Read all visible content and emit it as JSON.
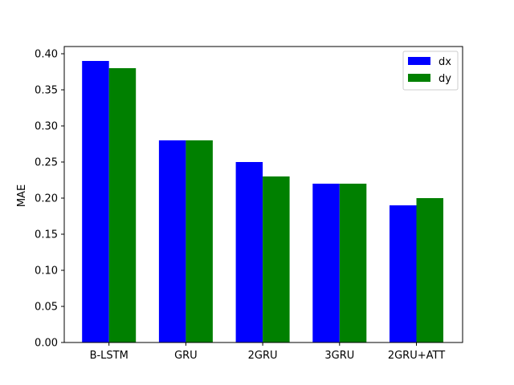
{
  "chart_data": {
    "type": "bar",
    "categories": [
      "B-LSTM",
      "GRU",
      "2GRU",
      "3GRU",
      "2GRU+ATT"
    ],
    "series": [
      {
        "name": "dx",
        "values": [
          0.39,
          0.28,
          0.25,
          0.22,
          0.19
        ],
        "color": "#0000ff"
      },
      {
        "name": "dy",
        "values": [
          0.38,
          0.28,
          0.23,
          0.22,
          0.2
        ],
        "color": "#008000"
      }
    ],
    "title": "",
    "xlabel": "",
    "ylabel": "MAE",
    "ylim": [
      0,
      0.4
    ],
    "yticks": [
      "0.00",
      "0.05",
      "0.10",
      "0.15",
      "0.20",
      "0.25",
      "0.30",
      "0.35",
      "0.40"
    ],
    "grid": false,
    "legend_position": "top-right"
  }
}
